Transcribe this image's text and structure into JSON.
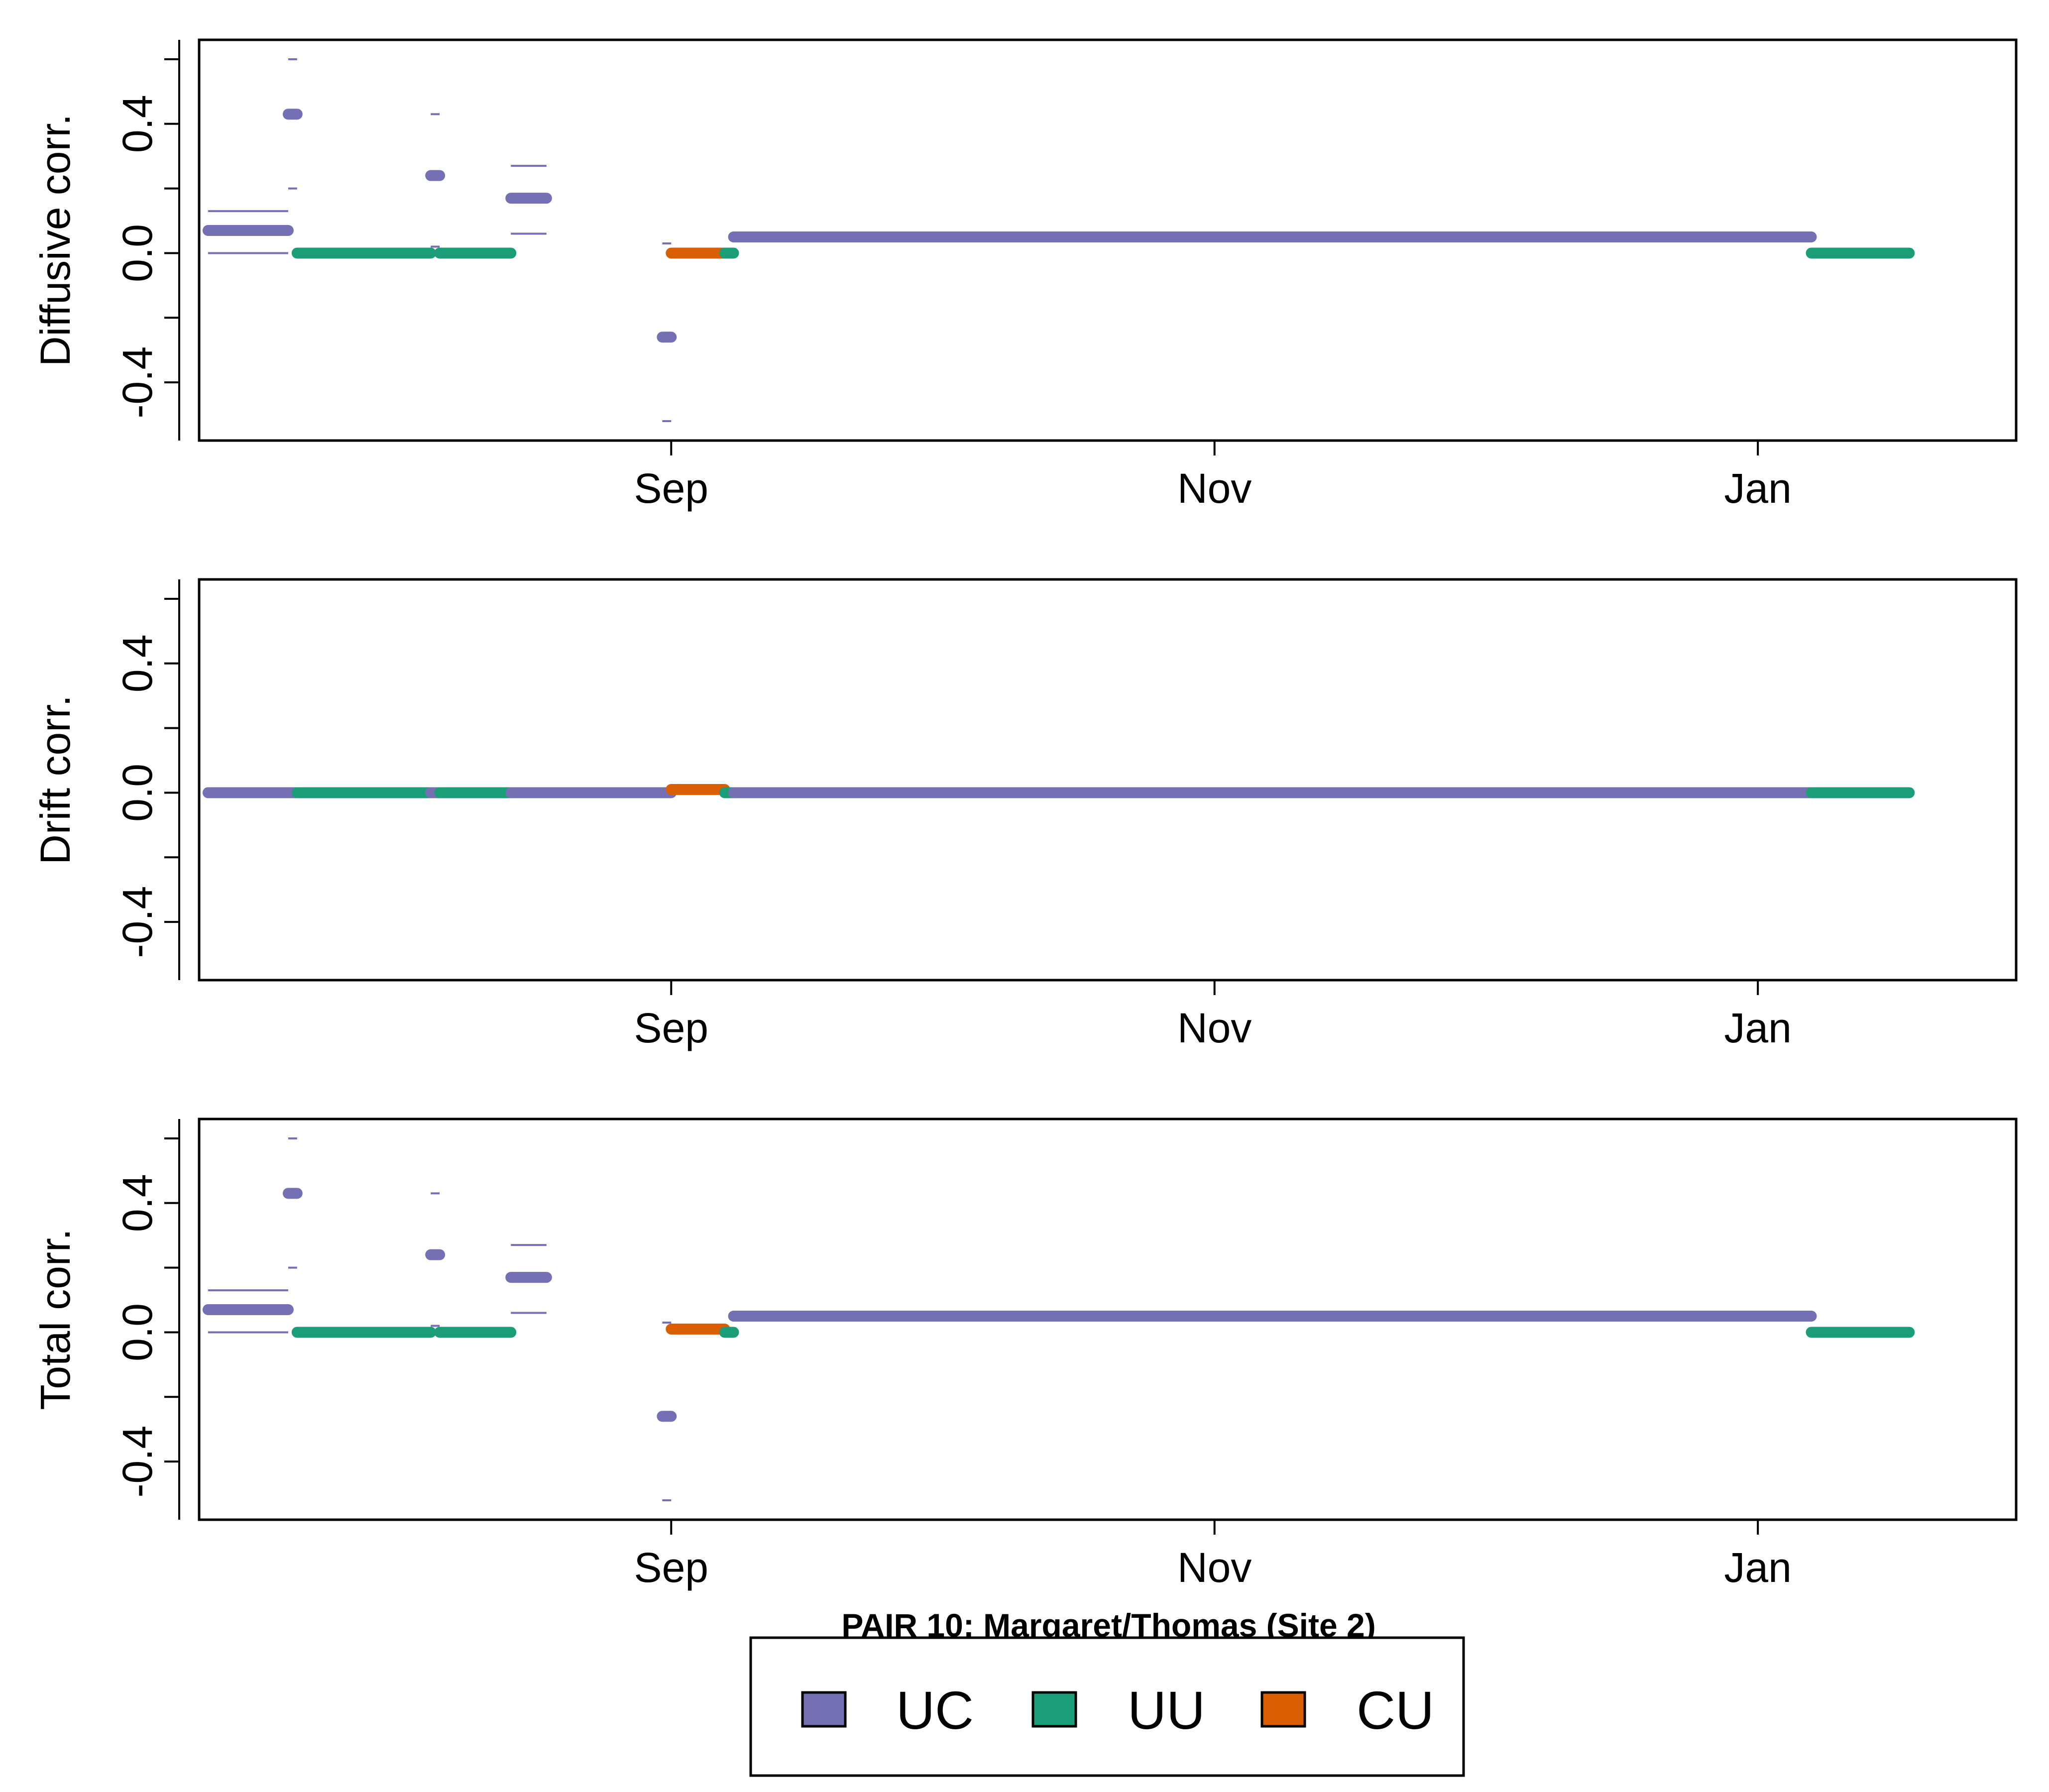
{
  "caption": "PAIR 10: Margaret/Thomas (Site 2)",
  "colors": {
    "UC": "#7570b3",
    "UU": "#1b9e77",
    "CU": "#d95f02"
  },
  "legend": {
    "placement": "bottom-center",
    "entries": [
      {
        "key": "UC",
        "label": "UC"
      },
      {
        "key": "UU",
        "label": "UU"
      },
      {
        "key": "CU",
        "label": "CU"
      }
    ]
  },
  "chart_data": [
    {
      "type": "line",
      "ylabel": "Diffusive corr.",
      "xlabel": "",
      "x_axis": {
        "type": "date",
        "range": [
          "2018-07-10",
          "2019-01-30"
        ],
        "ticks": [
          {
            "date": "2018-09-01",
            "label": "Sep"
          },
          {
            "date": "2018-11-01",
            "label": "Nov"
          },
          {
            "date": "2019-01-01",
            "label": "Jan"
          }
        ]
      },
      "ylim": [
        -0.58,
        0.66
      ],
      "yticks": [
        -0.4,
        0.0,
        0.4
      ],
      "ytick_labels": [
        "-0.4",
        "0.0",
        "0.4"
      ],
      "grid": false,
      "segments": [
        {
          "state": "UC",
          "start": "2018-07-11",
          "end": "2018-07-20",
          "value": 0.07,
          "ci": [
            0.0,
            0.13
          ]
        },
        {
          "state": "UC",
          "start": "2018-07-20",
          "end": "2018-07-21",
          "value": 0.43,
          "ci": [
            0.2,
            0.6
          ]
        },
        {
          "state": "UU",
          "start": "2018-07-21",
          "end": "2018-08-05",
          "value": 0.0
        },
        {
          "state": "UC",
          "start": "2018-08-05",
          "end": "2018-08-06",
          "value": 0.24,
          "ci": [
            0.02,
            0.43
          ]
        },
        {
          "state": "UU",
          "start": "2018-08-06",
          "end": "2018-08-14",
          "value": 0.0
        },
        {
          "state": "UC",
          "start": "2018-08-14",
          "end": "2018-08-18",
          "value": 0.17,
          "ci": [
            0.06,
            0.27
          ]
        },
        {
          "state": "UC",
          "start": "2018-08-31",
          "end": "2018-09-01",
          "value": -0.26,
          "ci": [
            -0.52,
            0.03
          ]
        },
        {
          "state": "CU",
          "start": "2018-09-01",
          "end": "2018-09-07",
          "value": 0.0
        },
        {
          "state": "UU",
          "start": "2018-09-07",
          "end": "2018-09-08",
          "value": 0.0
        },
        {
          "state": "UC",
          "start": "2018-09-08",
          "end": "2019-01-07",
          "value": 0.05
        },
        {
          "state": "UU",
          "start": "2019-01-07",
          "end": "2019-01-18",
          "value": 0.0
        }
      ]
    },
    {
      "type": "line",
      "ylabel": "Drift corr.",
      "xlabel": "",
      "x_axis": {
        "type": "date",
        "range": [
          "2018-07-10",
          "2019-01-30"
        ],
        "ticks": [
          {
            "date": "2018-09-01",
            "label": "Sep"
          },
          {
            "date": "2018-11-01",
            "label": "Nov"
          },
          {
            "date": "2019-01-01",
            "label": "Jan"
          }
        ]
      },
      "ylim": [
        -0.58,
        0.66
      ],
      "yticks": [
        -0.4,
        0.0,
        0.4
      ],
      "ytick_labels": [
        "-0.4",
        "0.0",
        "0.4"
      ],
      "grid": false,
      "segments": [
        {
          "state": "UC",
          "start": "2018-07-11",
          "end": "2018-07-21",
          "value": 0.0
        },
        {
          "state": "UU",
          "start": "2018-07-21",
          "end": "2018-08-05",
          "value": 0.0
        },
        {
          "state": "UC",
          "start": "2018-08-05",
          "end": "2018-08-06",
          "value": 0.0
        },
        {
          "state": "UU",
          "start": "2018-08-06",
          "end": "2018-08-14",
          "value": 0.0
        },
        {
          "state": "UC",
          "start": "2018-08-14",
          "end": "2018-09-01",
          "value": 0.0
        },
        {
          "state": "CU",
          "start": "2018-09-01",
          "end": "2018-09-07",
          "value": 0.01
        },
        {
          "state": "UU",
          "start": "2018-09-07",
          "end": "2018-09-08",
          "value": 0.0
        },
        {
          "state": "UC",
          "start": "2018-09-08",
          "end": "2019-01-07",
          "value": 0.0
        },
        {
          "state": "UU",
          "start": "2019-01-07",
          "end": "2019-01-18",
          "value": 0.0
        }
      ]
    },
    {
      "type": "line",
      "ylabel": "Total corr.",
      "xlabel": "",
      "x_axis": {
        "type": "date",
        "range": [
          "2018-07-10",
          "2019-01-30"
        ],
        "ticks": [
          {
            "date": "2018-09-01",
            "label": "Sep"
          },
          {
            "date": "2018-11-01",
            "label": "Nov"
          },
          {
            "date": "2019-01-01",
            "label": "Jan"
          }
        ]
      },
      "ylim": [
        -0.58,
        0.66
      ],
      "yticks": [
        -0.4,
        0.0,
        0.4
      ],
      "ytick_labels": [
        "-0.4",
        "0.0",
        "0.4"
      ],
      "grid": false,
      "segments": [
        {
          "state": "UC",
          "start": "2018-07-11",
          "end": "2018-07-20",
          "value": 0.07,
          "ci": [
            0.0,
            0.13
          ]
        },
        {
          "state": "UC",
          "start": "2018-07-20",
          "end": "2018-07-21",
          "value": 0.43,
          "ci": [
            0.2,
            0.6
          ]
        },
        {
          "state": "UU",
          "start": "2018-07-21",
          "end": "2018-08-05",
          "value": 0.0
        },
        {
          "state": "UC",
          "start": "2018-08-05",
          "end": "2018-08-06",
          "value": 0.24,
          "ci": [
            0.02,
            0.43
          ]
        },
        {
          "state": "UU",
          "start": "2018-08-06",
          "end": "2018-08-14",
          "value": 0.0
        },
        {
          "state": "UC",
          "start": "2018-08-14",
          "end": "2018-08-18",
          "value": 0.17,
          "ci": [
            0.06,
            0.27
          ]
        },
        {
          "state": "UC",
          "start": "2018-08-31",
          "end": "2018-09-01",
          "value": -0.26,
          "ci": [
            -0.52,
            0.03
          ]
        },
        {
          "state": "CU",
          "start": "2018-09-01",
          "end": "2018-09-07",
          "value": 0.01
        },
        {
          "state": "UU",
          "start": "2018-09-07",
          "end": "2018-09-08",
          "value": 0.0
        },
        {
          "state": "UC",
          "start": "2018-09-08",
          "end": "2019-01-07",
          "value": 0.05
        },
        {
          "state": "UU",
          "start": "2019-01-07",
          "end": "2019-01-18",
          "value": 0.0
        }
      ]
    }
  ]
}
